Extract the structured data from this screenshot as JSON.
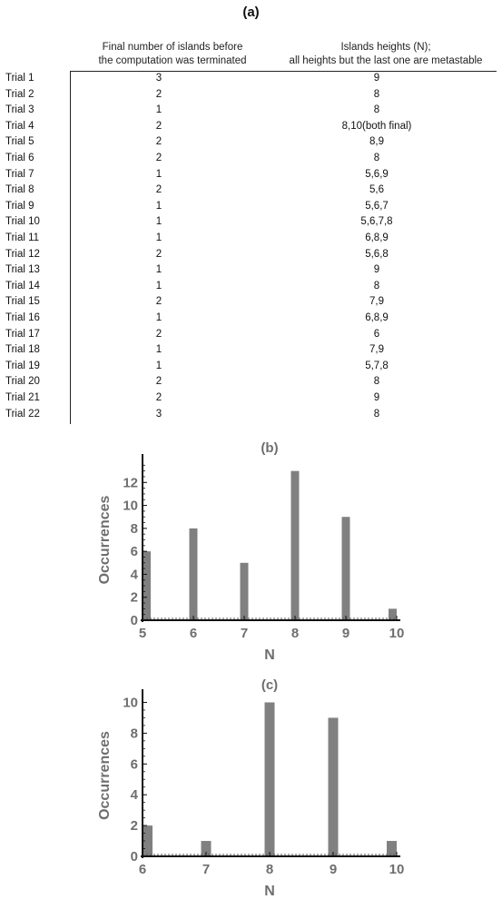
{
  "panel_a": {
    "title": "(a)",
    "col1_line1": "Final number of islands before",
    "col1_line2": "the computation was terminated",
    "col2_line1": "Islands heights (N);",
    "col2_line2": "all heights but the last one are metastable",
    "rows": [
      {
        "trial": "Trial 1",
        "count": "3",
        "heights": "9"
      },
      {
        "trial": "Trial 2",
        "count": "2",
        "heights": "8"
      },
      {
        "trial": "Trial 3",
        "count": "1",
        "heights": "8"
      },
      {
        "trial": "Trial 4",
        "count": "2",
        "heights": "8,10(both final)"
      },
      {
        "trial": "Trial 5",
        "count": "2",
        "heights": "8,9"
      },
      {
        "trial": "Trial 6",
        "count": "2",
        "heights": "8"
      },
      {
        "trial": "Trial 7",
        "count": "1",
        "heights": "5,6,9"
      },
      {
        "trial": "Trial 8",
        "count": "2",
        "heights": "5,6"
      },
      {
        "trial": "Trial 9",
        "count": "1",
        "heights": "5,6,7"
      },
      {
        "trial": "Trial 10",
        "count": "1",
        "heights": "5,6,7,8"
      },
      {
        "trial": "Trial 11",
        "count": "1",
        "heights": "6,8,9"
      },
      {
        "trial": "Trial 12",
        "count": "2",
        "heights": "5,6,8"
      },
      {
        "trial": "Trial 13",
        "count": "1",
        "heights": "9"
      },
      {
        "trial": "Trial 14",
        "count": "1",
        "heights": "8"
      },
      {
        "trial": "Trial 15",
        "count": "2",
        "heights": "7,9"
      },
      {
        "trial": "Trial 16",
        "count": "1",
        "heights": "6,8,9"
      },
      {
        "trial": "Trial 17",
        "count": "2",
        "heights": "6"
      },
      {
        "trial": "Trial 18",
        "count": "1",
        "heights": "7,9"
      },
      {
        "trial": "Trial 19",
        "count": "1",
        "heights": "5,7,8"
      },
      {
        "trial": "Trial 20",
        "count": "2",
        "heights": "8"
      },
      {
        "trial": "Trial 21",
        "count": "2",
        "heights": "9"
      },
      {
        "trial": "Trial 22",
        "count": "3",
        "heights": "8"
      }
    ]
  },
  "chart_data": [
    {
      "type": "bar",
      "title": "(b)",
      "xlabel": "N",
      "ylabel": "Occurrences",
      "categories": [
        "5",
        "6",
        "7",
        "8",
        "9",
        "10"
      ],
      "values": [
        6,
        8,
        5,
        13,
        9,
        1
      ],
      "xlim": [
        5,
        10
      ],
      "ylim": [
        0,
        14
      ],
      "yticks": [
        0,
        2,
        4,
        6,
        8,
        10,
        12
      ],
      "bar_color": "#808080",
      "grid": false
    },
    {
      "type": "bar",
      "title": "(c)",
      "xlabel": "N",
      "ylabel": "Occurrences",
      "categories": [
        "6",
        "7",
        "8",
        "9",
        "10"
      ],
      "values": [
        2,
        1,
        10,
        9,
        1
      ],
      "xlim": [
        6,
        10
      ],
      "ylim": [
        0,
        10.5
      ],
      "yticks": [
        0,
        2,
        4,
        6,
        8,
        10
      ],
      "bar_color": "#808080",
      "grid": false
    }
  ]
}
